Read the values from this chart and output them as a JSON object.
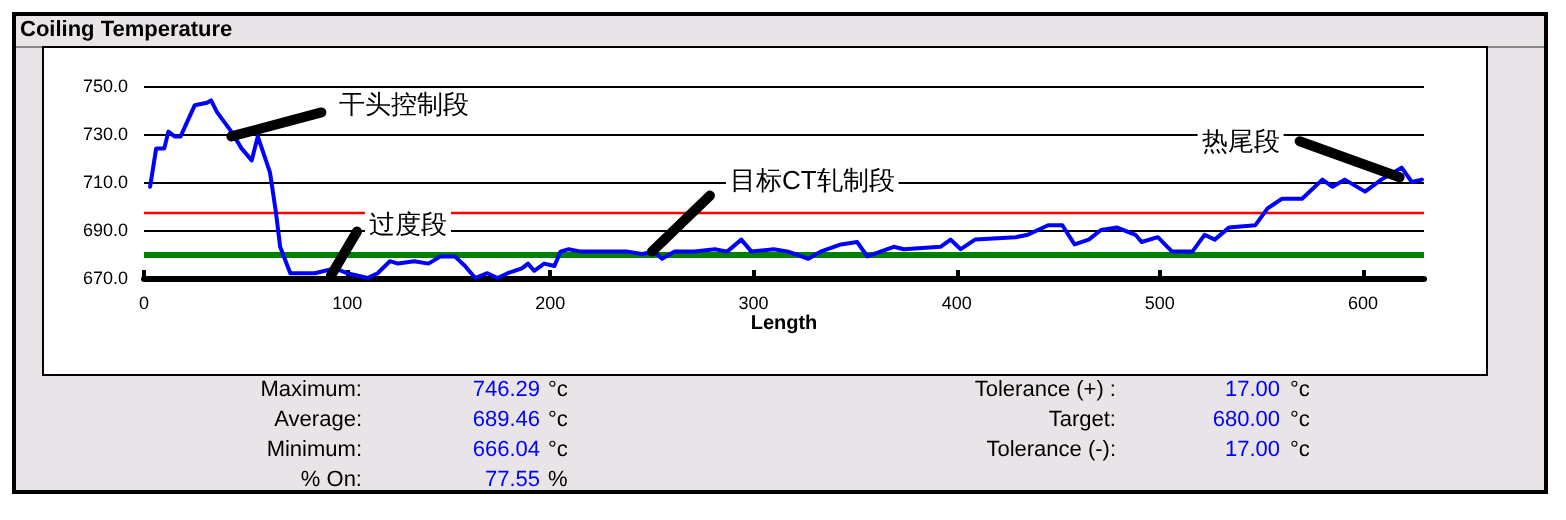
{
  "chart_data": {
    "type": "line",
    "title": "Coiling Temperature",
    "xlabel": "Length",
    "xlim": [
      0,
      630
    ],
    "xticks": [
      0,
      100,
      200,
      300,
      400,
      500,
      600
    ],
    "ylim": [
      670,
      750
    ],
    "yticks": [
      {
        "value": 670,
        "label": "670.0"
      },
      {
        "value": 690,
        "label": "690.0"
      },
      {
        "value": 710,
        "label": "710.0"
      },
      {
        "value": 730,
        "label": "730.0"
      },
      {
        "value": 750,
        "label": "750.0"
      }
    ],
    "grid": "y",
    "marker": "none",
    "line_style": "solid",
    "series": [
      {
        "color": "#0000ff",
        "x": [
          3,
          6,
          10,
          12,
          15,
          18,
          25,
          31,
          33,
          36,
          43,
          48,
          53,
          56,
          58,
          62,
          65,
          67,
          72,
          84,
          94,
          100,
          110,
          115,
          121,
          125,
          133,
          140,
          146,
          153,
          158,
          163,
          169,
          174,
          179,
          186,
          189,
          192,
          197,
          202,
          205,
          209,
          215,
          225,
          238,
          245,
          251,
          255,
          261,
          271,
          281,
          287,
          294,
          299,
          310,
          317,
          327,
          333,
          343,
          351,
          356,
          369,
          374,
          392,
          397,
          402,
          409,
          429,
          435,
          445,
          452,
          458,
          465,
          471,
          479,
          488,
          491,
          499,
          506,
          516,
          522,
          527,
          534,
          547,
          553,
          560,
          570,
          580,
          585,
          591,
          601,
          609,
          619,
          624,
          629
        ],
        "values": [
          708,
          724,
          724,
          731,
          729,
          729,
          742,
          743,
          744,
          739,
          731,
          724,
          719,
          729,
          724,
          714,
          697,
          683,
          672,
          672,
          674,
          672,
          670,
          672,
          677,
          676,
          677,
          676,
          679,
          679,
          675,
          670,
          672,
          670,
          672,
          674,
          676,
          673,
          676,
          675,
          681,
          682,
          681,
          681,
          681,
          680,
          681,
          678,
          681,
          681,
          682,
          681,
          686,
          681,
          682,
          681,
          678,
          681,
          684,
          685,
          679,
          683,
          682,
          683,
          686,
          682,
          686,
          687,
          688,
          692,
          692,
          684,
          686,
          690,
          691,
          688,
          685,
          687,
          681,
          681,
          688,
          686,
          691,
          692,
          699,
          703,
          703,
          711,
          708,
          711,
          706,
          711,
          716,
          710,
          711
        ]
      }
    ],
    "ref_lines": [
      {
        "axis": "y",
        "value": 697,
        "color": "#ff0000"
      },
      {
        "axis": "y",
        "value": 680,
        "color": "#008000"
      }
    ],
    "annotations": [
      {
        "text": "干头控制段",
        "x": 43,
        "y": 729
      },
      {
        "text": "过度段",
        "x": 92,
        "y": 671
      },
      {
        "text": "目标CT轧制段",
        "x": 250,
        "y": 681
      },
      {
        "text": "热尾段",
        "x": 618,
        "y": 712
      },
      "Maximum:",
      "746.29",
      "°c",
      "Average:",
      "689.46",
      "°c",
      "Minimum:",
      "666.04",
      "°c",
      "% On:",
      "77.55",
      "%",
      "Tolerance (+) :",
      "17.00",
      "°c",
      "Target:",
      "680.00",
      "°c",
      "Tolerance (-):",
      "17.00",
      "°c"
    ]
  }
}
